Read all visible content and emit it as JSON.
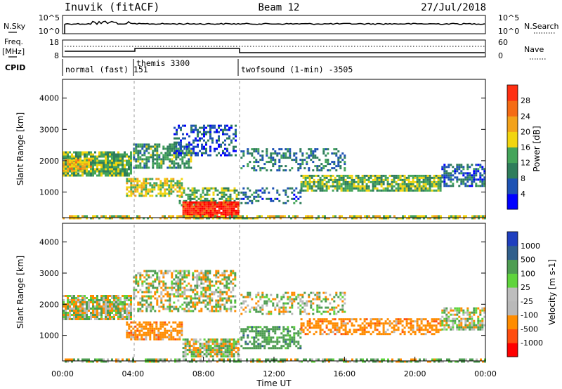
{
  "header": {
    "site": "Inuvik (fitACF)",
    "beam": "Beam 12",
    "date": "27/Jul/2018"
  },
  "top_panels": {
    "nsky_label": "N.Sky",
    "nsearch_label": "N.Search",
    "nsky_ticks": [
      "10^5",
      "10^0"
    ],
    "nsearch_ticks": [
      "10^5",
      "10^0"
    ],
    "freq_label": "Freq.",
    "freq_unit": "[MHz]",
    "freq_ticks": [
      "18",
      "8"
    ],
    "nave_label": "Nave",
    "nave_ticks": [
      "60",
      "0"
    ],
    "cpid_label": "CPID",
    "cpid_segments": [
      {
        "label": "normal (fast) 151",
        "start_hour": 0
      },
      {
        "label": "themis 3300",
        "start_hour": 4
      },
      {
        "label": "twofsound (1-min) -3505",
        "start_hour": 10
      }
    ]
  },
  "colors": {
    "power_scale": [
      "#0000ff",
      "#1d52b4",
      "#2e7d5b",
      "#44a55a",
      "#f2d50e",
      "#f3a21a",
      "#f56b14",
      "#ff2f12",
      "#ff0000"
    ],
    "velocity_scale": [
      "#ff0000",
      "#ff4d0f",
      "#ff8c00",
      "#b9b9b9",
      "#bdbdbd",
      "#5fd43c",
      "#4e9d52",
      "#305f8c",
      "#1f3fbf"
    ]
  },
  "chart_data": [
    {
      "type": "heatmap",
      "title": "Power",
      "xlabel": "",
      "ylabel": "Slant Range [km]",
      "x_unit": "hour UT",
      "xlim": [
        0,
        24
      ],
      "ylim": [
        180,
        4600
      ],
      "yticks": [
        "1000",
        "2000",
        "3000",
        "4000"
      ],
      "colorbar_label": "Power [dB]",
      "colorbar_range": [
        0,
        32
      ],
      "colorbar_ticks": [
        "4",
        "8",
        "12",
        "16",
        "20",
        "24",
        "28"
      ],
      "regions": [
        {
          "t0": 0.0,
          "t1": 3.9,
          "r0": 1550,
          "r1": 2300,
          "value": 14,
          "density": 0.9
        },
        {
          "t0": 0.0,
          "t1": 1.6,
          "r0": 1700,
          "r1": 2050,
          "value": 20,
          "density": 0.8
        },
        {
          "t0": 4.0,
          "t1": 7.3,
          "r0": 1750,
          "r1": 2550,
          "value": 12,
          "density": 0.7
        },
        {
          "t0": 6.3,
          "t1": 9.8,
          "r0": 2150,
          "r1": 3150,
          "value": 6,
          "density": 0.45
        },
        {
          "t0": 3.6,
          "t1": 6.8,
          "r0": 850,
          "r1": 1450,
          "value": 17,
          "density": 0.75
        },
        {
          "t0": 6.6,
          "t1": 10.0,
          "r0": 550,
          "r1": 1150,
          "value": 14,
          "density": 0.55
        },
        {
          "t0": 6.8,
          "t1": 10.0,
          "r0": 200,
          "r1": 700,
          "value": 31,
          "density": 0.97
        },
        {
          "t0": 10.1,
          "t1": 16.0,
          "r0": 1700,
          "r1": 2400,
          "value": 9,
          "density": 0.35
        },
        {
          "t0": 10.1,
          "t1": 13.5,
          "r0": 650,
          "r1": 1150,
          "value": 8,
          "density": 0.35
        },
        {
          "t0": 13.5,
          "t1": 21.5,
          "r0": 1050,
          "r1": 1550,
          "value": 14,
          "density": 0.8
        },
        {
          "t0": 21.5,
          "t1": 24.0,
          "r0": 1200,
          "r1": 1900,
          "value": 8,
          "density": 0.65
        },
        {
          "t0": 0.0,
          "t1": 24.0,
          "r0": 180,
          "r1": 260,
          "value": 18,
          "density": 0.6
        }
      ]
    },
    {
      "type": "heatmap",
      "title": "Velocity",
      "xlabel": "Time UT",
      "ylabel": "Slant Range [km]",
      "x_unit": "hour UT",
      "xlim": [
        0,
        24
      ],
      "ylim": [
        180,
        4600
      ],
      "xticks": [
        "00:00",
        "04:00",
        "08:00",
        "12:00",
        "16:00",
        "20:00",
        "00:00"
      ],
      "yticks": [
        "1000",
        "2000",
        "3000",
        "4000"
      ],
      "colorbar_label": "Velocity [m s-1]",
      "colorbar_ticks": [
        "-1000",
        "-500",
        "-100",
        "-25",
        "25",
        "100",
        "500",
        "1000"
      ],
      "regions": [
        {
          "t0": 0.0,
          "t1": 3.9,
          "r0": 1550,
          "r1": 2300,
          "value": 0,
          "density": 0.85
        },
        {
          "t0": 4.0,
          "t1": 9.8,
          "r0": 1750,
          "r1": 3100,
          "value": 0,
          "density": 0.55
        },
        {
          "t0": 3.6,
          "t1": 6.8,
          "r0": 850,
          "r1": 1450,
          "value": -300,
          "density": 0.7
        },
        {
          "t0": 6.8,
          "t1": 10.0,
          "r0": 350,
          "r1": 900,
          "value": 0,
          "density": 0.85
        },
        {
          "t0": 10.1,
          "t1": 13.5,
          "r0": 600,
          "r1": 1300,
          "value": 300,
          "density": 0.55
        },
        {
          "t0": 10.1,
          "t1": 16.0,
          "r0": 1700,
          "r1": 2400,
          "value": 0,
          "density": 0.4
        },
        {
          "t0": 13.5,
          "t1": 21.5,
          "r0": 1050,
          "r1": 1550,
          "value": -300,
          "density": 0.6
        },
        {
          "t0": 21.5,
          "t1": 24.0,
          "r0": 1200,
          "r1": 1900,
          "value": 0,
          "density": 0.65
        },
        {
          "t0": 0.0,
          "t1": 24.0,
          "r0": 180,
          "r1": 260,
          "value": 60,
          "density": 0.6
        }
      ]
    }
  ]
}
